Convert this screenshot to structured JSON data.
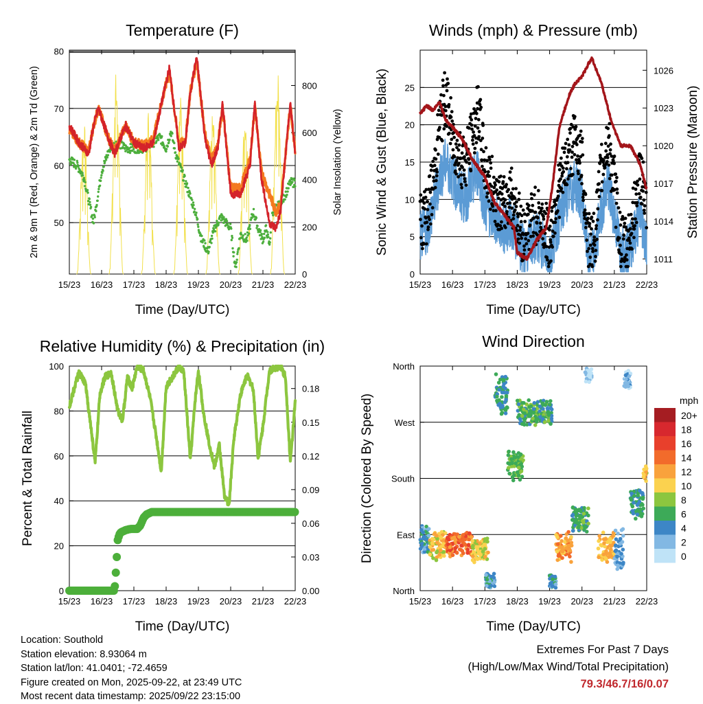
{
  "colors": {
    "temp2m": "#d4232a",
    "temp9m": "#f47a20",
    "dewpoint": "#4cae3c",
    "solar": "#f2e04b",
    "wind": "#5b9bd5",
    "gust": "#000000",
    "pressure": "#a3151a",
    "rh": "#8cc63f",
    "precip": "#4caf3a"
  },
  "footer": {
    "location": "Location: Southold",
    "elevation": "Station elevation: 8.93064 m",
    "latlon": "Station lat/lon: 41.0401; -72.4659",
    "created": "Figure created on Mon, 2025-09-22, at 23:49 UTC",
    "timestamp": "Most recent data timestamp: 2025/09/22 23:15:00"
  },
  "extremes": {
    "title": "Extremes For Past 7 Days",
    "subtitle": "(High/Low/Max Wind/Total Precipitation)",
    "values": "79.3/46.7/16/0.07"
  },
  "chart_data": [
    {
      "type": "line",
      "title": "Temperature (F)",
      "xlabel": "Time (Day/UTC)",
      "ylabel": "2m & 9m T (Red, Orange) & 2m Td (Green)",
      "ylabel_right": "Solar Insolation (Yellow)",
      "xlim": [
        15,
        22
      ],
      "xticks": [
        "15/23",
        "16/23",
        "17/23",
        "18/23",
        "19/23",
        "20/23",
        "21/23",
        "22/23"
      ],
      "ylim": [
        41,
        80.2
      ],
      "yticks": [
        50,
        60,
        70,
        80
      ],
      "ylim_right": [
        0,
        950
      ],
      "yticks_right": [
        0,
        200,
        400,
        600,
        800
      ],
      "gridlines_y": [
        50,
        60,
        70,
        80
      ],
      "series": [
        {
          "name": "2m T",
          "color_key": "temp2m",
          "x": [
            15.0,
            15.3,
            15.6,
            15.75,
            15.9,
            16.2,
            16.4,
            16.6,
            16.75,
            17.0,
            17.3,
            17.6,
            17.75,
            17.9,
            18.1,
            18.4,
            18.6,
            18.75,
            18.95,
            19.2,
            19.4,
            19.6,
            19.75,
            20.0,
            20.3,
            20.6,
            20.75,
            20.95,
            21.2,
            21.4,
            21.55,
            21.75,
            21.85,
            22.0
          ],
          "values": [
            67,
            64,
            62,
            67,
            70,
            65,
            62,
            65,
            67,
            64,
            63,
            64,
            68,
            72,
            77,
            63,
            64,
            73,
            79,
            65,
            60,
            63,
            71,
            55,
            55,
            60,
            71,
            58,
            50,
            49,
            52,
            65,
            71,
            62
          ]
        },
        {
          "name": "9m T",
          "color_key": "temp9m",
          "x": [
            15.0,
            15.3,
            15.6,
            15.75,
            15.9,
            16.2,
            16.4,
            16.6,
            16.75,
            17.0,
            17.3,
            17.6,
            17.75,
            17.9,
            18.1,
            18.4,
            18.6,
            18.75,
            18.95,
            19.2,
            19.4,
            19.6,
            19.75,
            20.0,
            20.3,
            20.6,
            20.75,
            20.95,
            21.2,
            21.4,
            21.55,
            21.75,
            21.85,
            22.0
          ],
          "values": [
            66.5,
            64,
            62.5,
            67,
            70,
            65,
            62.5,
            65,
            67,
            64,
            63.5,
            64.5,
            68.5,
            72,
            76.5,
            63.5,
            64.5,
            73,
            78.5,
            65.5,
            61,
            63.5,
            70.5,
            56,
            56,
            61,
            70.5,
            59,
            55,
            52,
            53,
            65,
            70.5,
            62.5
          ]
        },
        {
          "name": "2m Td",
          "color_key": "dewpoint",
          "x": [
            15.0,
            15.25,
            15.45,
            15.6,
            15.75,
            16.0,
            16.25,
            16.5,
            16.75,
            17.0,
            17.3,
            17.6,
            17.8,
            18.0,
            18.15,
            18.3,
            18.6,
            18.9,
            19.1,
            19.3,
            19.5,
            19.7,
            20.0,
            20.15,
            20.3,
            20.5,
            20.7,
            20.85,
            21.0,
            21.1,
            21.2,
            21.3,
            21.5,
            21.7,
            21.85,
            22.0
          ],
          "values": [
            61,
            60,
            58,
            54,
            50,
            59,
            63,
            64,
            63,
            63,
            63,
            64,
            65,
            63,
            66,
            62,
            57,
            52,
            47,
            45,
            49,
            51,
            49,
            42,
            48,
            47,
            52,
            49,
            47,
            49,
            46,
            52,
            53,
            55,
            57,
            57
          ]
        },
        {
          "name": "Solar Insolation",
          "color_key": "solar",
          "axis": "right",
          "days_x": [
            15.45,
            16.45,
            17.45,
            18.45,
            19.45,
            20.45,
            21.45
          ],
          "peak_values": [
            650,
            860,
            700,
            760,
            690,
            700,
            880
          ]
        }
      ]
    },
    {
      "type": "line",
      "title": "Winds (mph) & Pressure (mb)",
      "xlabel": "Time (Day/UTC)",
      "ylabel": "Sonic Wind & Gust (Blue, Black)",
      "ylabel_right": "Station Pressure (Maroon)",
      "xlim": [
        15,
        22
      ],
      "xticks": [
        "15/23",
        "16/23",
        "17/23",
        "18/23",
        "19/23",
        "20/23",
        "21/23",
        "22/23"
      ],
      "ylim": [
        0,
        30
      ],
      "yticks": [
        0,
        5,
        10,
        15,
        20,
        25
      ],
      "ylim_right": [
        1009.8,
        1027.6
      ],
      "yticks_right": [
        1011,
        1014,
        1017,
        1020,
        1023,
        1026
      ],
      "gridlines_y": [
        5,
        10,
        15,
        20,
        25
      ],
      "series": [
        {
          "name": "Sonic Wind",
          "color_key": "wind",
          "x": [
            15.0,
            15.2,
            15.4,
            15.6,
            15.8,
            16.0,
            16.2,
            16.4,
            16.6,
            16.8,
            17.0,
            17.2,
            17.4,
            17.6,
            17.8,
            18.0,
            18.2,
            18.4,
            18.6,
            18.8,
            19.0,
            19.2,
            19.4,
            19.6,
            19.8,
            20.0,
            20.2,
            20.4,
            20.6,
            20.8,
            21.0,
            21.2,
            21.4,
            21.6,
            21.8,
            22.0
          ],
          "values": [
            5,
            6,
            9,
            13,
            15,
            13,
            11,
            10,
            12,
            14,
            9,
            8,
            7,
            6,
            7,
            5,
            3,
            4,
            5,
            4,
            2,
            6,
            9,
            11,
            12,
            10,
            2,
            3,
            9,
            12,
            8,
            3,
            3,
            5,
            8,
            4
          ]
        },
        {
          "name": "Gust",
          "color_key": "gust",
          "x": [
            15.0,
            15.2,
            15.4,
            15.6,
            15.8,
            16.0,
            16.2,
            16.4,
            16.6,
            16.8,
            17.0,
            17.2,
            17.4,
            17.6,
            17.8,
            18.0,
            18.2,
            18.4,
            18.6,
            18.8,
            19.0,
            19.2,
            19.4,
            19.6,
            19.8,
            20.0,
            20.2,
            20.4,
            20.6,
            20.8,
            21.0,
            21.2,
            21.4,
            21.6,
            21.8,
            22.0
          ],
          "values": [
            7,
            8,
            12,
            20,
            24,
            18,
            16,
            15,
            18,
            22,
            14,
            12,
            10,
            9,
            11,
            8,
            5,
            7,
            8,
            7,
            4,
            10,
            13,
            16,
            18,
            15,
            4,
            5,
            14,
            18,
            12,
            4,
            4,
            8,
            14,
            8
          ]
        },
        {
          "name": "Station Pressure",
          "color_key": "pressure",
          "axis": "right",
          "x": [
            15.0,
            15.2,
            15.4,
            15.6,
            15.8,
            16.0,
            16.3,
            16.6,
            17.0,
            17.3,
            17.6,
            17.9,
            18.0,
            18.3,
            18.6,
            18.9,
            19.1,
            19.3,
            19.6,
            19.8,
            20.0,
            20.3,
            20.6,
            20.9,
            21.2,
            21.5,
            21.8,
            22.0
          ],
          "values": [
            1022.5,
            1023.2,
            1022.8,
            1023.5,
            1022.0,
            1021.5,
            1020.5,
            1019.0,
            1017.5,
            1015.5,
            1014.5,
            1013.5,
            1011.5,
            1011.0,
            1012.5,
            1013.5,
            1017.0,
            1021.5,
            1024.0,
            1025.0,
            1025.5,
            1027.0,
            1025.0,
            1022.0,
            1020.0,
            1020.0,
            1018.5,
            1016.5
          ]
        }
      ]
    },
    {
      "type": "line",
      "title": "Relative Humidity (%) & Precipitation (in)",
      "xlabel": "Time (Day/UTC)",
      "ylabel": "Percent & Total Rainfall",
      "xlim": [
        15,
        22
      ],
      "xticks": [
        "15/23",
        "16/23",
        "17/23",
        "18/23",
        "19/23",
        "20/23",
        "21/23",
        "22/23"
      ],
      "ylim": [
        0,
        100
      ],
      "yticks": [
        0,
        20,
        40,
        60,
        80,
        100
      ],
      "ylim_right": [
        0,
        0.2
      ],
      "yticks_right": [
        "0.00",
        "0.03",
        "0.06",
        "0.09",
        "0.12",
        "0.15",
        "0.18"
      ],
      "gridlines_y": [
        20,
        40,
        60,
        80,
        100
      ],
      "series": [
        {
          "name": "Relative Humidity",
          "color_key": "rh",
          "x": [
            15.0,
            15.15,
            15.3,
            15.5,
            15.65,
            15.8,
            15.95,
            16.1,
            16.3,
            16.5,
            16.65,
            16.8,
            16.95,
            17.1,
            17.3,
            17.5,
            17.7,
            17.85,
            18.0,
            18.2,
            18.4,
            18.55,
            18.75,
            18.9,
            19.0,
            19.15,
            19.3,
            19.5,
            19.65,
            19.8,
            19.95,
            20.1,
            20.3,
            20.5,
            20.7,
            20.85,
            21.0,
            21.2,
            21.35,
            21.55,
            21.7,
            21.85,
            22.0
          ],
          "values": [
            82,
            90,
            97,
            92,
            75,
            57,
            88,
            95,
            97,
            80,
            76,
            95,
            90,
            100,
            98,
            86,
            68,
            53,
            91,
            95,
            100,
            97,
            58,
            85,
            98,
            80,
            68,
            55,
            65,
            43,
            38,
            68,
            87,
            96,
            90,
            59,
            73,
            98,
            99,
            100,
            95,
            57,
            84
          ]
        },
        {
          "name": "Total Precipitation",
          "color_key": "precip",
          "axis": "right",
          "x": [
            15.0,
            16.4,
            16.45,
            16.5,
            16.55,
            16.6,
            16.75,
            16.9,
            17.1,
            17.2,
            17.3,
            17.4,
            17.55,
            22.0
          ],
          "values": [
            0.0,
            0.0,
            0.02,
            0.045,
            0.05,
            0.052,
            0.054,
            0.055,
            0.055,
            0.058,
            0.065,
            0.068,
            0.07,
            0.07
          ]
        }
      ]
    },
    {
      "type": "scatter",
      "title": "Wind Direction",
      "xlabel": "Time (Day/UTC)",
      "ylabel": "Direction (Colored By Speed)",
      "xlim": [
        15,
        22
      ],
      "xticks": [
        "15/23",
        "16/23",
        "17/23",
        "18/23",
        "19/23",
        "20/23",
        "21/23",
        "22/23"
      ],
      "ylim": [
        0,
        360
      ],
      "yticks": [
        "North",
        "East",
        "South",
        "West",
        "North"
      ],
      "gridlines_y": [
        "East",
        "South",
        "West"
      ],
      "colorbar": {
        "title": "mph",
        "labels": [
          "20+",
          "18",
          "16",
          "14",
          "12",
          "10",
          "8",
          "6",
          "4",
          "2",
          "0"
        ],
        "colors": [
          "#a51d22",
          "#d7282e",
          "#e8402c",
          "#f26b2b",
          "#f9a23c",
          "#fbd24f",
          "#8cc63f",
          "#3daa58",
          "#3d86c6",
          "#82b8e3",
          "#bfe3f7"
        ]
      },
      "clusters": [
        {
          "x_range": [
            15.0,
            15.3
          ],
          "dir_range": [
            55,
            110
          ],
          "speed": 4
        },
        {
          "x_range": [
            15.3,
            15.8
          ],
          "dir_range": [
            40,
            100
          ],
          "speed": 10
        },
        {
          "x_range": [
            15.8,
            16.6
          ],
          "dir_range": [
            50,
            100
          ],
          "speed": 14
        },
        {
          "x_range": [
            16.6,
            17.1
          ],
          "dir_range": [
            40,
            90
          ],
          "speed": 10
        },
        {
          "x_range": [
            17.0,
            17.3
          ],
          "dir_range": [
            0,
            30
          ],
          "speed": 4
        },
        {
          "x_range": [
            17.3,
            17.7
          ],
          "dir_range": [
            270,
            360
          ],
          "speed": 5
        },
        {
          "x_range": [
            17.7,
            18.2
          ],
          "dir_range": [
            170,
            230
          ],
          "speed": 7
        },
        {
          "x_range": [
            18.0,
            19.1
          ],
          "dir_range": [
            260,
            310
          ],
          "speed": 6
        },
        {
          "x_range": [
            19.0,
            19.2
          ],
          "dir_range": [
            0,
            30
          ],
          "speed": 4
        },
        {
          "x_range": [
            19.2,
            19.7
          ],
          "dir_range": [
            40,
            100
          ],
          "speed": 12
        },
        {
          "x_range": [
            19.7,
            20.2
          ],
          "dir_range": [
            90,
            140
          ],
          "speed": 6
        },
        {
          "x_range": [
            20.1,
            20.3
          ],
          "dir_range": [
            330,
            360
          ],
          "speed": 1
        },
        {
          "x_range": [
            20.5,
            21.0
          ],
          "dir_range": [
            40,
            100
          ],
          "speed": 11
        },
        {
          "x_range": [
            21.0,
            21.3
          ],
          "dir_range": [
            20,
            110
          ],
          "speed": 3
        },
        {
          "x_range": [
            21.3,
            21.5
          ],
          "dir_range": [
            320,
            360
          ],
          "speed": 2
        },
        {
          "x_range": [
            21.5,
            21.9
          ],
          "dir_range": [
            110,
            170
          ],
          "speed": 5
        },
        {
          "x_range": [
            21.9,
            22.0
          ],
          "dir_range": [
            170,
            210
          ],
          "speed": 10
        }
      ]
    }
  ]
}
